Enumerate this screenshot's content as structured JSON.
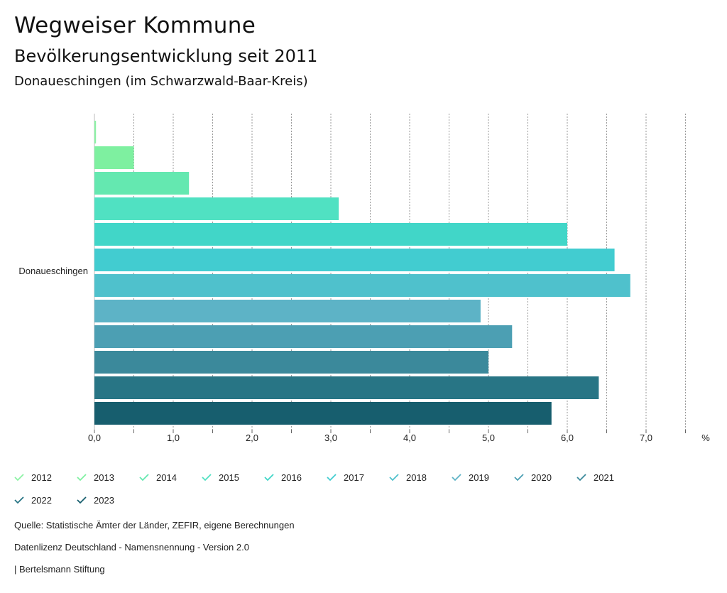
{
  "header": {
    "title": "Wegweiser Kommune",
    "subtitle": "Bevölkerungsentwicklung seit 2011",
    "region": "Donaueschingen (im Schwarzwald-Baar-Kreis)"
  },
  "chart_data": {
    "type": "bar",
    "orientation": "horizontal",
    "categories": [
      "Donaueschingen"
    ],
    "unit_label": "%",
    "xlim": [
      0,
      7.5
    ],
    "xticks": [
      "0,0",
      "1,0",
      "2,0",
      "3,0",
      "4,0",
      "5,0",
      "6,0",
      "7,0"
    ],
    "grid": true,
    "series": [
      {
        "name": "2012",
        "color": "#8cf2a5",
        "values": [
          0.02
        ]
      },
      {
        "name": "2013",
        "color": "#7ef0a0",
        "values": [
          0.5
        ]
      },
      {
        "name": "2014",
        "color": "#64e8b0",
        "values": [
          1.2
        ]
      },
      {
        "name": "2015",
        "color": "#50e1c2",
        "values": [
          3.1
        ]
      },
      {
        "name": "2016",
        "color": "#41d6c8",
        "values": [
          6.0
        ]
      },
      {
        "name": "2017",
        "color": "#42ccd0",
        "values": [
          6.6
        ]
      },
      {
        "name": "2018",
        "color": "#4fc1cc",
        "values": [
          6.8
        ]
      },
      {
        "name": "2019",
        "color": "#5db3c6",
        "values": [
          4.9
        ]
      },
      {
        "name": "2020",
        "color": "#4c9fb3",
        "values": [
          5.3
        ]
      },
      {
        "name": "2021",
        "color": "#3b899b",
        "values": [
          5.0
        ]
      },
      {
        "name": "2022",
        "color": "#287585",
        "values": [
          6.4
        ]
      },
      {
        "name": "2023",
        "color": "#175e6e",
        "values": [
          5.8
        ]
      }
    ]
  },
  "footer": {
    "source": "Quelle: Statistische Ämter der Länder, ZEFIR, eigene Berechnungen",
    "license": "Datenlizenz Deutschland - Namensnennung - Version 2.0",
    "publisher": "| Bertelsmann Stiftung"
  }
}
